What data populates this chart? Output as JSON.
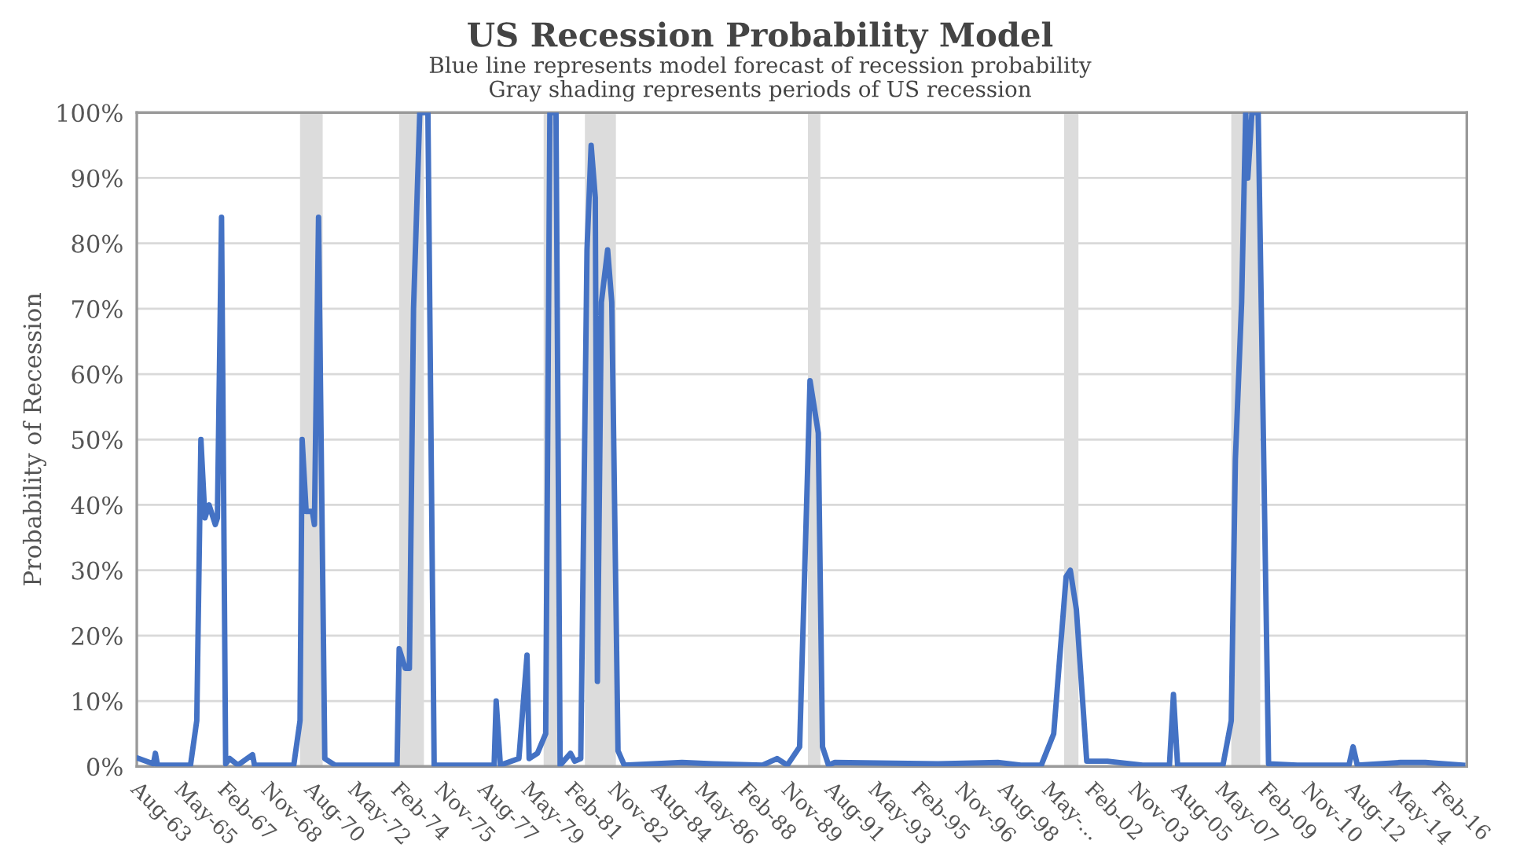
{
  "chart_data": {
    "type": "line",
    "title": "US Recession Probability Model",
    "subtitle": "Blue line represents model forecast of recession probability\nGray shading represents periods of US recession",
    "ylabel": "Probability of Recession",
    "x": [
      "1963-07",
      "1964-02",
      "1964-03",
      "1964-04",
      "1965-08",
      "1965-11",
      "1966-01",
      "1966-03",
      "1966-05",
      "1966-08",
      "1966-09",
      "1966-11",
      "1967-01",
      "1967-03",
      "1967-07",
      "1968-02",
      "1968-03",
      "1969-10",
      "1970-01",
      "1970-02",
      "1970-04",
      "1970-07",
      "1970-08",
      "1970-10",
      "1971-01",
      "1971-03",
      "1971-06",
      "1973-12",
      "1974-01",
      "1974-04",
      "1974-06",
      "1974-08",
      "1974-11",
      "1975-03",
      "1975-06",
      "1977-11",
      "1977-12",
      "1978-02",
      "1978-11",
      "1979-03",
      "1979-04",
      "1979-08",
      "1979-12",
      "1980-02",
      "1980-05",
      "1980-07",
      "1980-12",
      "1981-02",
      "1981-05",
      "1981-08",
      "1981-10",
      "1981-12",
      "1982-01",
      "1982-03",
      "1982-06",
      "1982-08",
      "1982-11",
      "1983-02",
      "1985-06",
      "1986-09",
      "1988-09",
      "1989-04",
      "1989-09",
      "1990-03",
      "1990-07",
      "1990-08",
      "1990-12",
      "1991-02",
      "1991-05",
      "1991-08",
      "1995-10",
      "1998-03",
      "1999-02",
      "1999-12",
      "2000-06",
      "2000-12",
      "2001-02",
      "2001-05",
      "2001-10",
      "2002-08",
      "2004-01",
      "2005-02",
      "2005-04",
      "2005-06",
      "2007-04",
      "2007-08",
      "2007-10",
      "2008-01",
      "2008-03",
      "2008-04",
      "2008-06",
      "2008-09",
      "2009-02",
      "2010-04",
      "2012-05",
      "2012-07",
      "2012-09",
      "2014-06",
      "2015-06",
      "2016-12"
    ],
    "series": [
      {
        "color": "#4472c4",
        "values": [
          1.2,
          0.4,
          2,
          0.2,
          0.2,
          7,
          50,
          38,
          40,
          37,
          38,
          84,
          0.4,
          1.2,
          0.2,
          1.8,
          0.2,
          0.2,
          7,
          50,
          39,
          39,
          37,
          84,
          1.2,
          0.8,
          0.2,
          0.2,
          18,
          15,
          15,
          70,
          100,
          100,
          0.2,
          0.2,
          10,
          0.2,
          1.2,
          17,
          1.2,
          2,
          5,
          100,
          100,
          0.2,
          2,
          0.8,
          1.2,
          79,
          95,
          87,
          13,
          71,
          79,
          71,
          2.4,
          0.2,
          0.6,
          0.4,
          0.2,
          1.2,
          0.2,
          3,
          47,
          59,
          51,
          3,
          0.2,
          0.6,
          0.4,
          0.6,
          0.2,
          0.2,
          5,
          29,
          30,
          24,
          0.8,
          0.8,
          0.2,
          0.2,
          11,
          0.2,
          0.2,
          7,
          47,
          71,
          100,
          90,
          100,
          100,
          0.4,
          0.2,
          0.2,
          3,
          0.2,
          0.6,
          0.6,
          0.2
        ]
      }
    ],
    "xlim": [
      "1963-06",
      "2017-02"
    ],
    "xticks": [
      {
        "value": "1963-08",
        "label": "Aug-63"
      },
      {
        "value": "1965-05",
        "label": "May-65"
      },
      {
        "value": "1967-02",
        "label": "Feb-67"
      },
      {
        "value": "1968-11",
        "label": "Nov-68"
      },
      {
        "value": "1970-08",
        "label": "Aug-70"
      },
      {
        "value": "1972-05",
        "label": "May-72"
      },
      {
        "value": "1974-02",
        "label": "Feb-74"
      },
      {
        "value": "1975-11",
        "label": "Nov-75"
      },
      {
        "value": "1977-08",
        "label": "Aug-77"
      },
      {
        "value": "1979-05",
        "label": "May-79"
      },
      {
        "value": "1981-02",
        "label": "Feb-81"
      },
      {
        "value": "1982-11",
        "label": "Nov-82"
      },
      {
        "value": "1984-08",
        "label": "Aug-84"
      },
      {
        "value": "1986-05",
        "label": "May-86"
      },
      {
        "value": "1988-02",
        "label": "Feb-88"
      },
      {
        "value": "1989-11",
        "label": "Nov-89"
      },
      {
        "value": "1991-08",
        "label": "Aug-91"
      },
      {
        "value": "1993-05",
        "label": "May-93"
      },
      {
        "value": "1995-02",
        "label": "Feb-95"
      },
      {
        "value": "1996-11",
        "label": "Nov-96"
      },
      {
        "value": "1998-08",
        "label": "Aug-98"
      },
      {
        "value": "2000-05",
        "label": "May-..."
      },
      {
        "value": "2002-02",
        "label": "Feb-02"
      },
      {
        "value": "2003-11",
        "label": "Nov-03"
      },
      {
        "value": "2005-08",
        "label": "Aug-05"
      },
      {
        "value": "2007-05",
        "label": "May-07"
      },
      {
        "value": "2009-02",
        "label": "Feb-09"
      },
      {
        "value": "2010-11",
        "label": "Nov-10"
      },
      {
        "value": "2012-08",
        "label": "Aug-12"
      },
      {
        "value": "2014-05",
        "label": "May-14"
      },
      {
        "value": "2016-02",
        "label": "Feb-16"
      }
    ],
    "ylim": [
      0,
      100
    ],
    "yticks": [
      {
        "value": 0,
        "label": "0%"
      },
      {
        "value": 10,
        "label": "10%"
      },
      {
        "value": 20,
        "label": "20%"
      },
      {
        "value": 30,
        "label": "30%"
      },
      {
        "value": 40,
        "label": "40%"
      },
      {
        "value": 50,
        "label": "50%"
      },
      {
        "value": 60,
        "label": "60%"
      },
      {
        "value": 70,
        "label": "70%"
      },
      {
        "value": 80,
        "label": "80%"
      },
      {
        "value": 90,
        "label": "90%"
      },
      {
        "value": 100,
        "label": "100%"
      }
    ],
    "bands": [
      {
        "axis": "x",
        "from": "1970-01",
        "to": "1970-12",
        "color": "#dcdcdc"
      },
      {
        "axis": "x",
        "from": "1974-01",
        "to": "1975-01",
        "color": "#dcdcdc"
      },
      {
        "axis": "x",
        "from": "1979-11",
        "to": "1980-06",
        "color": "#dcdcdc"
      },
      {
        "axis": "x",
        "from": "1981-07",
        "to": "1982-10",
        "color": "#dcdcdc"
      },
      {
        "axis": "x",
        "from": "1990-07",
        "to": "1991-01",
        "color": "#dcdcdc"
      },
      {
        "axis": "x",
        "from": "2000-11",
        "to": "2001-06",
        "color": "#dcdcdc"
      },
      {
        "axis": "x",
        "from": "2007-08",
        "to": "2008-10",
        "color": "#dcdcdc"
      }
    ],
    "grid": "y",
    "line_style": "solid"
  }
}
